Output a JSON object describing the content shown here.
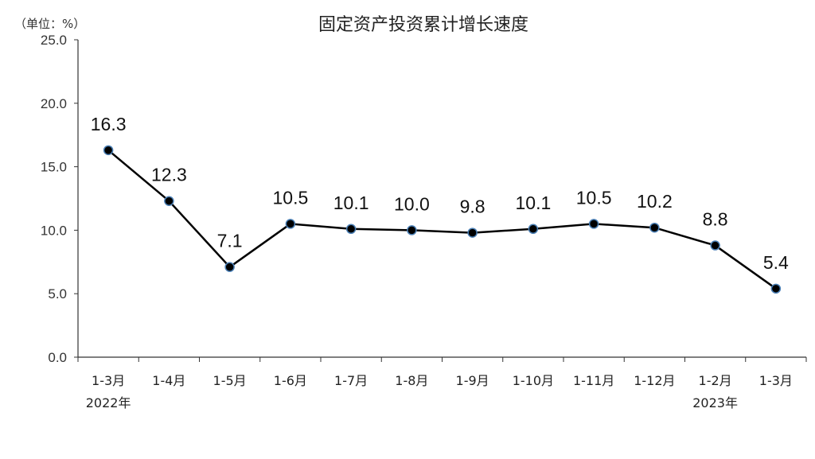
{
  "chart_data": {
    "type": "line",
    "title": "固定资产投资累计增长速度",
    "unit_label": "（单位：%）",
    "categories": [
      "1-3月",
      "1-4月",
      "1-5月",
      "1-6月",
      "1-7月",
      "1-8月",
      "1-9月",
      "1-10月",
      "1-11月",
      "1-12月",
      "1-2月",
      "1-3月"
    ],
    "year_labels": [
      {
        "category_index": 0,
        "text": "2022年"
      },
      {
        "category_index": 10,
        "text": "2023年"
      }
    ],
    "series": [
      {
        "values": [
          16.3,
          12.3,
          7.1,
          10.5,
          10.1,
          10.0,
          9.8,
          10.1,
          10.5,
          10.2,
          8.8,
          5.4
        ],
        "data_labels": [
          "16.3",
          "12.3",
          "7.1",
          "10.5",
          "10.1",
          "10.0",
          "9.8",
          "10.1",
          "10.5",
          "10.2",
          "8.8",
          "5.4"
        ],
        "color": "#000000",
        "marker_edge_color": "#4a7fb5"
      }
    ],
    "yticks": [
      "0.0",
      "5.0",
      "10.0",
      "15.0",
      "20.0",
      "25.0"
    ],
    "ylim": [
      0,
      25
    ],
    "grid": false,
    "legend": "none"
  }
}
